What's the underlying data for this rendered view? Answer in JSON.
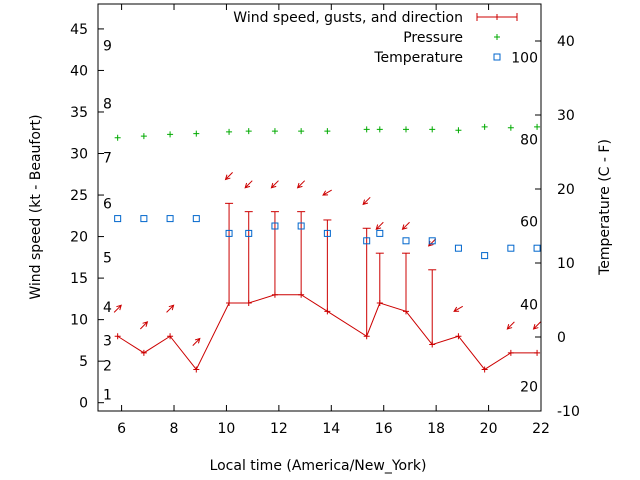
{
  "chart_data": {
    "type": "line",
    "xlabel": "Local time (America/New_York)",
    "ylabel": "Wind speed (kt - Beaufort)",
    "y2label": "Temperature (C - F)",
    "xlim": [
      5.1,
      22
    ],
    "ylim": [
      -1,
      48
    ],
    "y2lim": [
      -10,
      45
    ],
    "x_ticks": [
      6,
      8,
      10,
      12,
      14,
      16,
      18,
      20,
      22
    ],
    "y_ticks": [
      0,
      5,
      10,
      15,
      20,
      25,
      30,
      35,
      40,
      45
    ],
    "y2_ticks": [
      -10,
      0,
      10,
      20,
      30,
      40
    ],
    "beaufort_labels": [
      {
        "label": "1",
        "y": 1
      },
      {
        "label": "2",
        "y": 4.5
      },
      {
        "label": "3",
        "y": 7.5
      },
      {
        "label": "4",
        "y": 11.5
      },
      {
        "label": "5",
        "y": 17.5
      },
      {
        "label": "6",
        "y": 24
      },
      {
        "label": "7",
        "y": 29.5
      },
      {
        "label": "8",
        "y": 36
      },
      {
        "label": "9",
        "y": 43
      }
    ],
    "fahrenheit_labels": [
      {
        "label": "100",
        "c": 37.8
      },
      {
        "label": "80",
        "c": 26.7
      },
      {
        "label": "60",
        "c": 15.6
      },
      {
        "label": "40",
        "c": 4.4
      },
      {
        "label": "20",
        "c": -6.7
      }
    ],
    "legend": [
      {
        "label": "Wind speed, gusts, and direction",
        "color": "#cc0000",
        "marker": "errorbar"
      },
      {
        "label": "Pressure",
        "color": "#00aa00",
        "marker": "plus"
      },
      {
        "label": "Temperature",
        "color": "#0066cc",
        "marker": "square"
      }
    ],
    "legend_position": "top-right",
    "wind": {
      "x": [
        5.85,
        6.85,
        7.85,
        8.85,
        10.1,
        10.85,
        11.85,
        12.85,
        13.85,
        15.35,
        15.85,
        16.85,
        17.85,
        18.85,
        19.85,
        20.85,
        21.85
      ],
      "speed": [
        8,
        6,
        8,
        4,
        12,
        12,
        13,
        13,
        11,
        8,
        12,
        11,
        7,
        8,
        4,
        6,
        6
      ],
      "gust": [
        null,
        null,
        null,
        null,
        24,
        23,
        23,
        23,
        22,
        21,
        18,
        18,
        16,
        null,
        null,
        null,
        null
      ],
      "direction": [
        225,
        225,
        225,
        225,
        45,
        45,
        45,
        45,
        60,
        45,
        45,
        45,
        45,
        60,
        null,
        45,
        45
      ]
    },
    "pressure": {
      "x": [
        5.85,
        6.85,
        7.85,
        8.85,
        10.1,
        10.85,
        11.85,
        12.85,
        13.85,
        15.35,
        15.85,
        16.85,
        17.85,
        18.85,
        19.85,
        20.85,
        21.85
      ],
      "values": [
        31.9,
        32.1,
        32.3,
        32.4,
        32.6,
        32.7,
        32.7,
        32.7,
        32.7,
        32.9,
        32.9,
        32.9,
        32.9,
        32.8,
        33.2,
        33.1,
        33.2
      ]
    },
    "temperature": {
      "x": [
        5.85,
        6.85,
        7.85,
        8.85,
        10.1,
        10.85,
        11.85,
        12.85,
        13.85,
        15.35,
        15.85,
        16.85,
        17.85,
        18.85,
        19.85,
        20.85,
        21.85
      ],
      "values": [
        16,
        16,
        16,
        16,
        14,
        14,
        15,
        15,
        14,
        13,
        14,
        13,
        13,
        12,
        11,
        12,
        12
      ]
    }
  }
}
